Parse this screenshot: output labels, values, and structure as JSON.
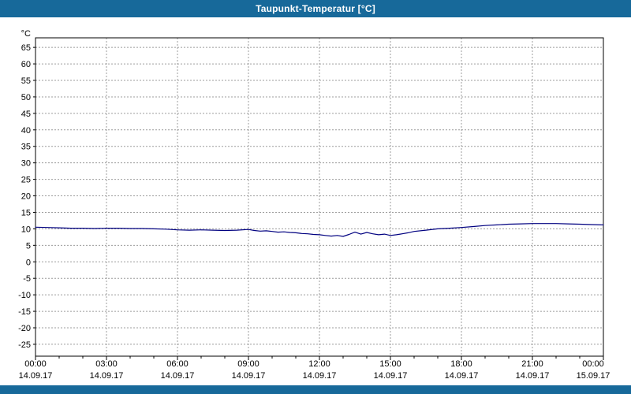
{
  "header": {
    "title": "Taupunkt-Temperatur [°C]"
  },
  "colors": {
    "titlebar_bg": "#17699a",
    "titlebar_text": "#ffffff",
    "plot_bg": "#ffffff",
    "grid": "#9c9c9c",
    "axis": "#000000",
    "series_line": "#000080",
    "label_text": "#000000"
  },
  "chart_data": {
    "type": "line",
    "title": "Taupunkt-Temperatur [°C]",
    "xlabel": "",
    "ylabel": "°C",
    "grid": true,
    "legend": "none",
    "xlim": [
      0,
      24
    ],
    "ylim": [
      -28.6,
      67.9
    ],
    "y_ticks": [
      65,
      60,
      55,
      50,
      45,
      40,
      35,
      30,
      25,
      20,
      15,
      10,
      5,
      0,
      -5,
      -10,
      -15,
      -20,
      -25
    ],
    "x_ticks": [
      {
        "hour": 0,
        "time": "00:00",
        "date": "14.09.17"
      },
      {
        "hour": 3,
        "time": "03:00",
        "date": "14.09.17"
      },
      {
        "hour": 6,
        "time": "06:00",
        "date": "14.09.17"
      },
      {
        "hour": 9,
        "time": "09:00",
        "date": "14.09.17"
      },
      {
        "hour": 12,
        "time": "12:00",
        "date": "14.09.17"
      },
      {
        "hour": 15,
        "time": "15:00",
        "date": "14.09.17"
      },
      {
        "hour": 18,
        "time": "18:00",
        "date": "14.09.17"
      },
      {
        "hour": 21,
        "time": "21:00",
        "date": "14.09.17"
      },
      {
        "hour": 24,
        "time": "00:00",
        "date": "15.09.17"
      }
    ],
    "series": [
      {
        "name": "Taupunkt-Temperatur",
        "color": "#000080",
        "x": [
          0,
          0.5,
          1,
          1.5,
          2,
          2.5,
          3,
          3.5,
          4,
          4.5,
          5,
          5.5,
          6,
          6.5,
          7,
          7.5,
          8,
          8.5,
          9,
          9.25,
          9.5,
          9.75,
          10,
          10.25,
          10.5,
          10.75,
          11,
          11.25,
          11.5,
          11.75,
          12,
          12.25,
          12.5,
          12.75,
          13,
          13.25,
          13.5,
          13.75,
          14,
          14.25,
          14.5,
          14.75,
          15,
          15.25,
          15.5,
          15.75,
          16,
          16.5,
          17,
          17.5,
          18,
          18.5,
          19,
          19.5,
          20,
          20.5,
          21,
          21.5,
          22,
          22.5,
          23,
          23.5,
          24
        ],
        "y": [
          10.5,
          10.4,
          10.3,
          10.2,
          10.2,
          10.1,
          10.2,
          10.2,
          10.1,
          10.1,
          10.0,
          9.9,
          9.7,
          9.6,
          9.7,
          9.6,
          9.5,
          9.6,
          9.8,
          9.5,
          9.3,
          9.4,
          9.2,
          9.0,
          9.1,
          8.9,
          8.8,
          8.6,
          8.5,
          8.3,
          8.2,
          8.0,
          7.8,
          8.0,
          7.7,
          8.3,
          9.0,
          8.4,
          8.9,
          8.5,
          8.2,
          8.4,
          8.0,
          8.2,
          8.5,
          8.8,
          9.2,
          9.6,
          10.0,
          10.2,
          10.4,
          10.7,
          11.0,
          11.2,
          11.4,
          11.5,
          11.6,
          11.6,
          11.6,
          11.5,
          11.4,
          11.3,
          11.2
        ]
      }
    ]
  }
}
